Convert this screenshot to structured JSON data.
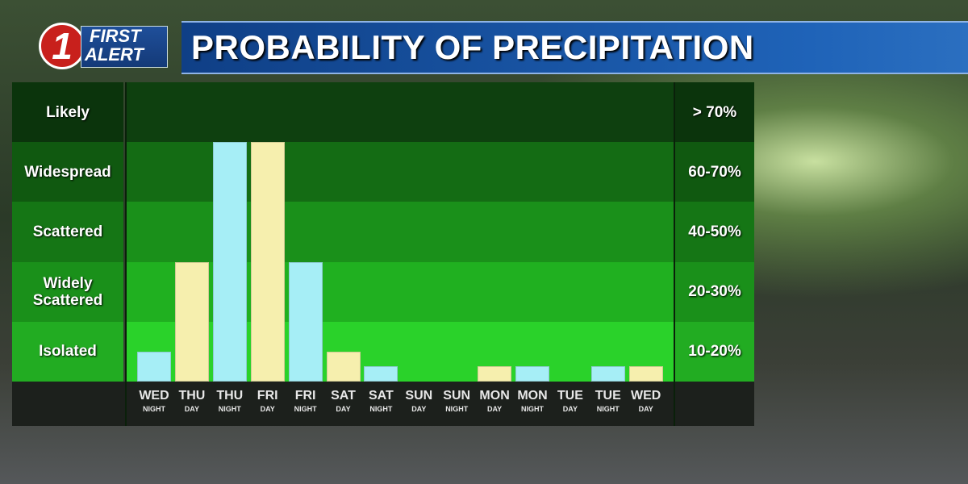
{
  "chart_data": {
    "type": "bar",
    "title": "PROBABILITY OF PRECIPITATION",
    "logo": {
      "number": "1",
      "line1": "FIRST",
      "line2": "ALERT"
    },
    "levels": [
      {
        "label": "Isolated",
        "range": "10-20%"
      },
      {
        "label": "Widely Scattered",
        "range": "20-30%"
      },
      {
        "label": "Scattered",
        "range": "40-50%"
      },
      {
        "label": "Widespread",
        "range": "60-70%"
      },
      {
        "label": "Likely",
        "range": "> 70%"
      }
    ],
    "level_colors": [
      "#2ad22a",
      "#20b020",
      "#1a901a",
      "#146c14",
      "#0e400f"
    ],
    "categories": [
      [
        "WED",
        "NIGHT"
      ],
      [
        "THU",
        "DAY"
      ],
      [
        "THU",
        "NIGHT"
      ],
      [
        "FRI",
        "DAY"
      ],
      [
        "FRI",
        "NIGHT"
      ],
      [
        "SAT",
        "DAY"
      ],
      [
        "SAT",
        "NIGHT"
      ],
      [
        "SUN",
        "DAY"
      ],
      [
        "SUN",
        "NIGHT"
      ],
      [
        "MON",
        "DAY"
      ],
      [
        "MON",
        "NIGHT"
      ],
      [
        "TUE",
        "DAY"
      ],
      [
        "TUE",
        "NIGHT"
      ],
      [
        "WED",
        "DAY"
      ]
    ],
    "values": [
      0.5,
      2,
      4,
      4,
      2,
      0.5,
      0.25,
      0,
      0,
      0.25,
      0.25,
      0,
      0.25,
      0.25
    ],
    "colors": [
      "#a6eef6",
      "#f6efae",
      "#a6eef6",
      "#f6efae",
      "#a6eef6",
      "#f6efae",
      "#a6eef6",
      "#f6efae",
      "#a6eef6",
      "#f6efae",
      "#a6eef6",
      "#f6efae",
      "#a6eef6",
      "#f6efae"
    ],
    "ylim": [
      0,
      5
    ]
  }
}
